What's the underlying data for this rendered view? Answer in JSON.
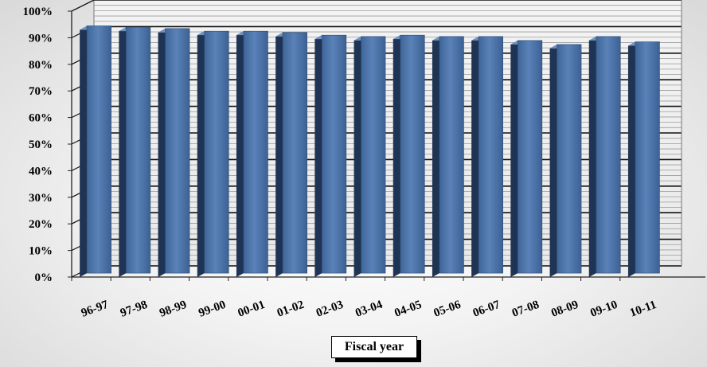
{
  "chart_data": {
    "type": "bar",
    "title": "",
    "xlabel": "Fiscal year",
    "ylabel": "",
    "categories": [
      "96-97",
      "97-98",
      "98-99",
      "99-00",
      "00-01",
      "01-02",
      "02-03",
      "03-04",
      "04-05",
      "05-06",
      "06-07",
      "07-08",
      "08-09",
      "09-10",
      "10-11"
    ],
    "series": [
      {
        "values": [
          93,
          92.5,
          92,
          91,
          91,
          90.5,
          89.5,
          89,
          89.5,
          89,
          89,
          87.5,
          86,
          89,
          87
        ]
      }
    ],
    "ylim": [
      0,
      100
    ],
    "yticks": [
      "0%",
      "10%",
      "20%",
      "30%",
      "40%",
      "50%",
      "60%",
      "70%",
      "80%",
      "90%",
      "100%"
    ],
    "grid": true,
    "style": "3d-column",
    "colors": {
      "bar_front": "#4a72a8",
      "bar_side": "#1f3454",
      "bar_top": "#6f92c2"
    }
  }
}
